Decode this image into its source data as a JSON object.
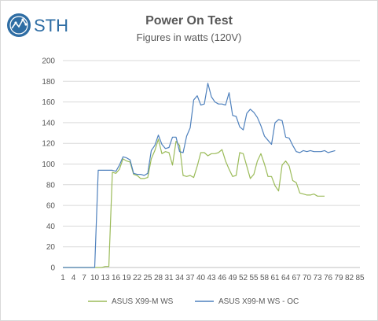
{
  "logo_text": "STH",
  "chart_data": {
    "type": "line",
    "title": "Power On Test",
    "subtitle": "Figures in watts (120V)",
    "xlabel": "",
    "ylabel": "",
    "ylim": [
      0,
      200
    ],
    "yticks": [
      0,
      20,
      40,
      60,
      80,
      100,
      120,
      140,
      160,
      180,
      200
    ],
    "x_tick_labels": [
      "1",
      "4",
      "7",
      "10",
      "13",
      "16",
      "19",
      "22",
      "25",
      "28",
      "31",
      "34",
      "37",
      "40",
      "43",
      "46",
      "49",
      "52",
      "55",
      "58",
      "61",
      "64",
      "67",
      "70",
      "73",
      "76",
      "79",
      "82",
      "85"
    ],
    "grid": true,
    "legend": "bottom",
    "colors": {
      "series1": "#9bbb59",
      "series2": "#4f81bd"
    },
    "series": [
      {
        "name": "ASUS X99-M WS",
        "values": [
          0,
          0,
          0,
          0,
          0,
          0,
          0,
          0,
          0,
          0,
          0,
          0,
          1,
          1,
          92,
          91,
          95,
          105,
          103,
          102,
          90,
          89,
          86,
          86,
          87,
          105,
          113,
          124,
          110,
          112,
          111,
          99,
          122,
          118,
          89,
          88,
          89,
          87,
          98,
          111,
          111,
          108,
          110,
          110,
          111,
          114,
          103,
          95,
          88,
          89,
          111,
          110,
          98,
          86,
          90,
          103,
          110,
          100,
          88,
          88,
          79,
          74,
          99,
          103,
          98,
          84,
          82,
          72,
          71,
          70,
          70,
          71,
          69,
          69,
          69
        ],
        "x_start": 1
      },
      {
        "name": "ASUS X99-M WS - OC",
        "values": [
          0,
          0,
          0,
          0,
          0,
          0,
          0,
          0,
          0,
          0,
          94,
          94,
          94,
          94,
          94,
          93,
          99,
          107,
          106,
          104,
          91,
          90,
          90,
          89,
          91,
          113,
          118,
          128,
          119,
          115,
          116,
          126,
          126,
          112,
          111,
          127,
          135,
          162,
          166,
          157,
          158,
          178,
          165,
          160,
          158,
          158,
          157,
          169,
          147,
          146,
          136,
          133,
          149,
          153,
          150,
          145,
          137,
          127,
          123,
          119,
          140,
          143,
          142,
          126,
          125,
          118,
          112,
          111,
          113,
          112,
          113,
          112,
          112,
          112,
          113,
          111,
          112,
          113
        ],
        "x_start": 1
      }
    ]
  }
}
